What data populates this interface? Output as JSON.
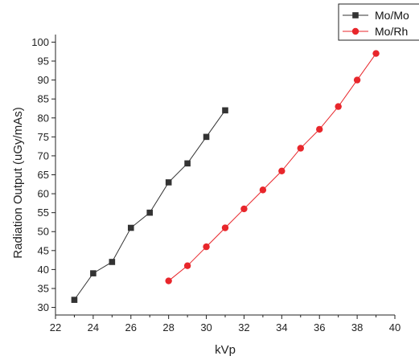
{
  "chart_data": {
    "type": "line",
    "title": "",
    "xlabel": "kVp",
    "ylabel": "Radiation Output (uGy/mAs)",
    "xlim": [
      22,
      40
    ],
    "ylim": [
      28,
      102
    ],
    "x_ticks": [
      22,
      24,
      26,
      28,
      30,
      32,
      34,
      36,
      38,
      40
    ],
    "y_ticks": [
      30,
      35,
      40,
      45,
      50,
      55,
      60,
      65,
      70,
      75,
      80,
      85,
      90,
      95,
      100
    ],
    "grid": false,
    "legend_position": "top-right",
    "series": [
      {
        "name": "Mo/Mo",
        "color": "#333333",
        "marker": "square",
        "x": [
          23,
          24,
          25,
          26,
          27,
          28,
          29,
          30,
          31
        ],
        "y": [
          32,
          39,
          42,
          51,
          55,
          63,
          68,
          75,
          82
        ]
      },
      {
        "name": "Mo/Rh",
        "color": "#e8262b",
        "marker": "circle",
        "x": [
          28,
          29,
          30,
          31,
          32,
          33,
          34,
          35,
          36,
          37,
          38,
          39
        ],
        "y": [
          37,
          41,
          46,
          51,
          56,
          61,
          66,
          72,
          77,
          83,
          90,
          97
        ]
      }
    ]
  }
}
